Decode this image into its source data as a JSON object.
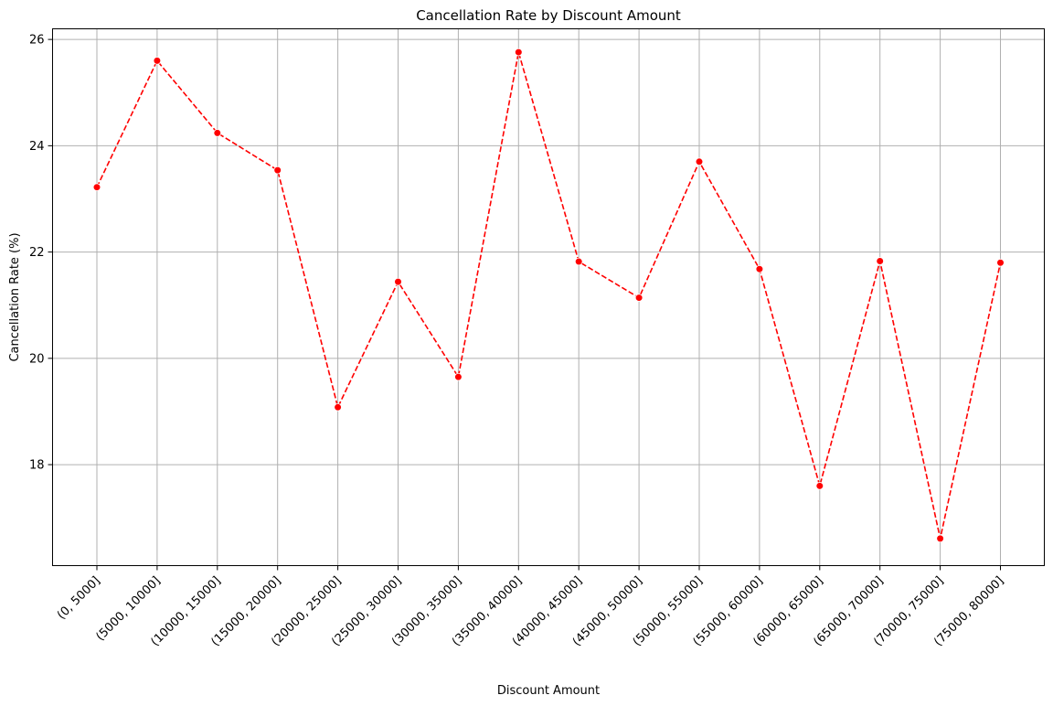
{
  "chart_data": {
    "type": "line",
    "title": "Cancellation Rate by Discount Amount",
    "xlabel": "Discount Amount",
    "ylabel": "Cancellation Rate (%)",
    "categories": [
      "(0, 5000]",
      "(5000, 10000]",
      "(10000, 15000]",
      "(15000, 20000]",
      "(20000, 25000]",
      "(25000, 30000]",
      "(30000, 35000]",
      "(35000, 40000]",
      "(40000, 45000]",
      "(45000, 50000]",
      "(50000, 55000]",
      "(55000, 60000]",
      "(60000, 65000]",
      "(65000, 70000]",
      "(70000, 75000]",
      "(75000, 80000]"
    ],
    "values": [
      23.22,
      25.6,
      24.24,
      23.54,
      19.08,
      21.44,
      19.65,
      25.76,
      21.82,
      21.14,
      23.7,
      21.68,
      17.6,
      21.83,
      16.61,
      21.8
    ],
    "ylim": [
      16.1,
      26.2
    ],
    "yticks": [
      18,
      20,
      22,
      24,
      26
    ],
    "grid": true,
    "line_color": "#ff0000",
    "line_style": "dashed",
    "marker": "circle"
  }
}
